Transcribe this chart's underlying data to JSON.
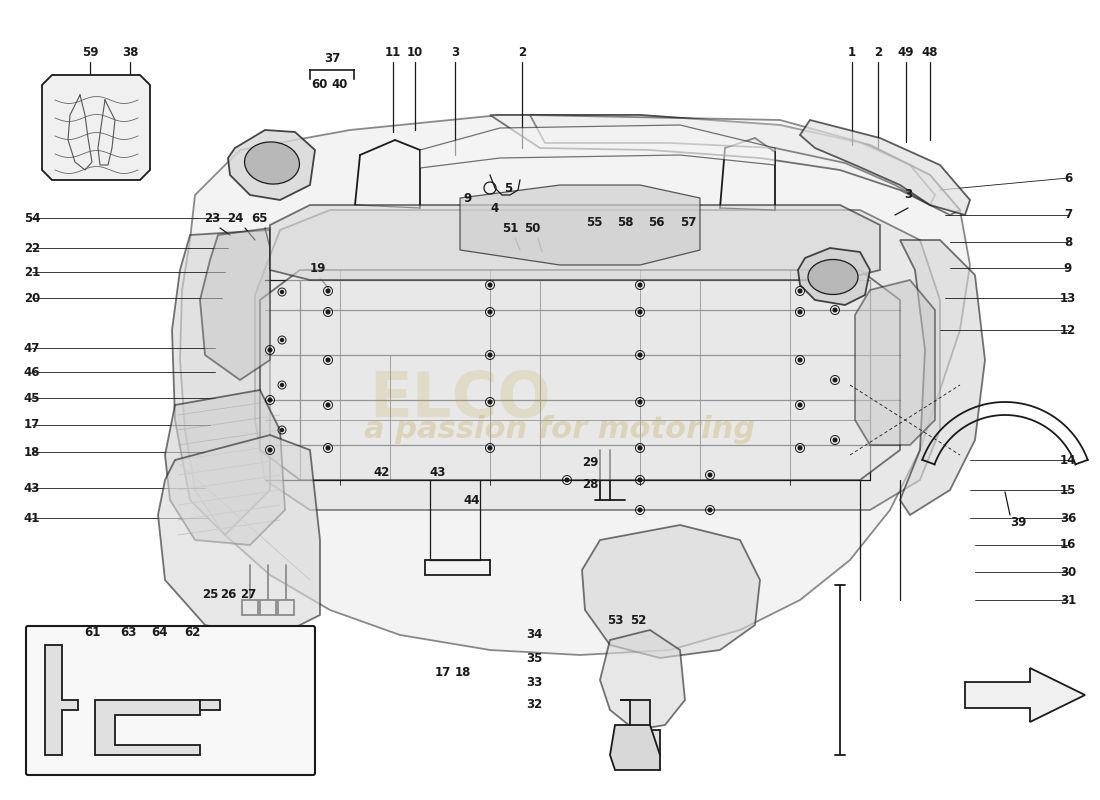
{
  "bg_color": "#ffffff",
  "line_color": "#1a1a1a",
  "light_gray": "#cccccc",
  "mid_gray": "#aaaaaa",
  "dark_gray": "#888888",
  "watermark1": "a passion for motoring",
  "watermark2": "ELCO",
  "wm_color": "#c8b060",
  "wm_alpha": 0.35
}
